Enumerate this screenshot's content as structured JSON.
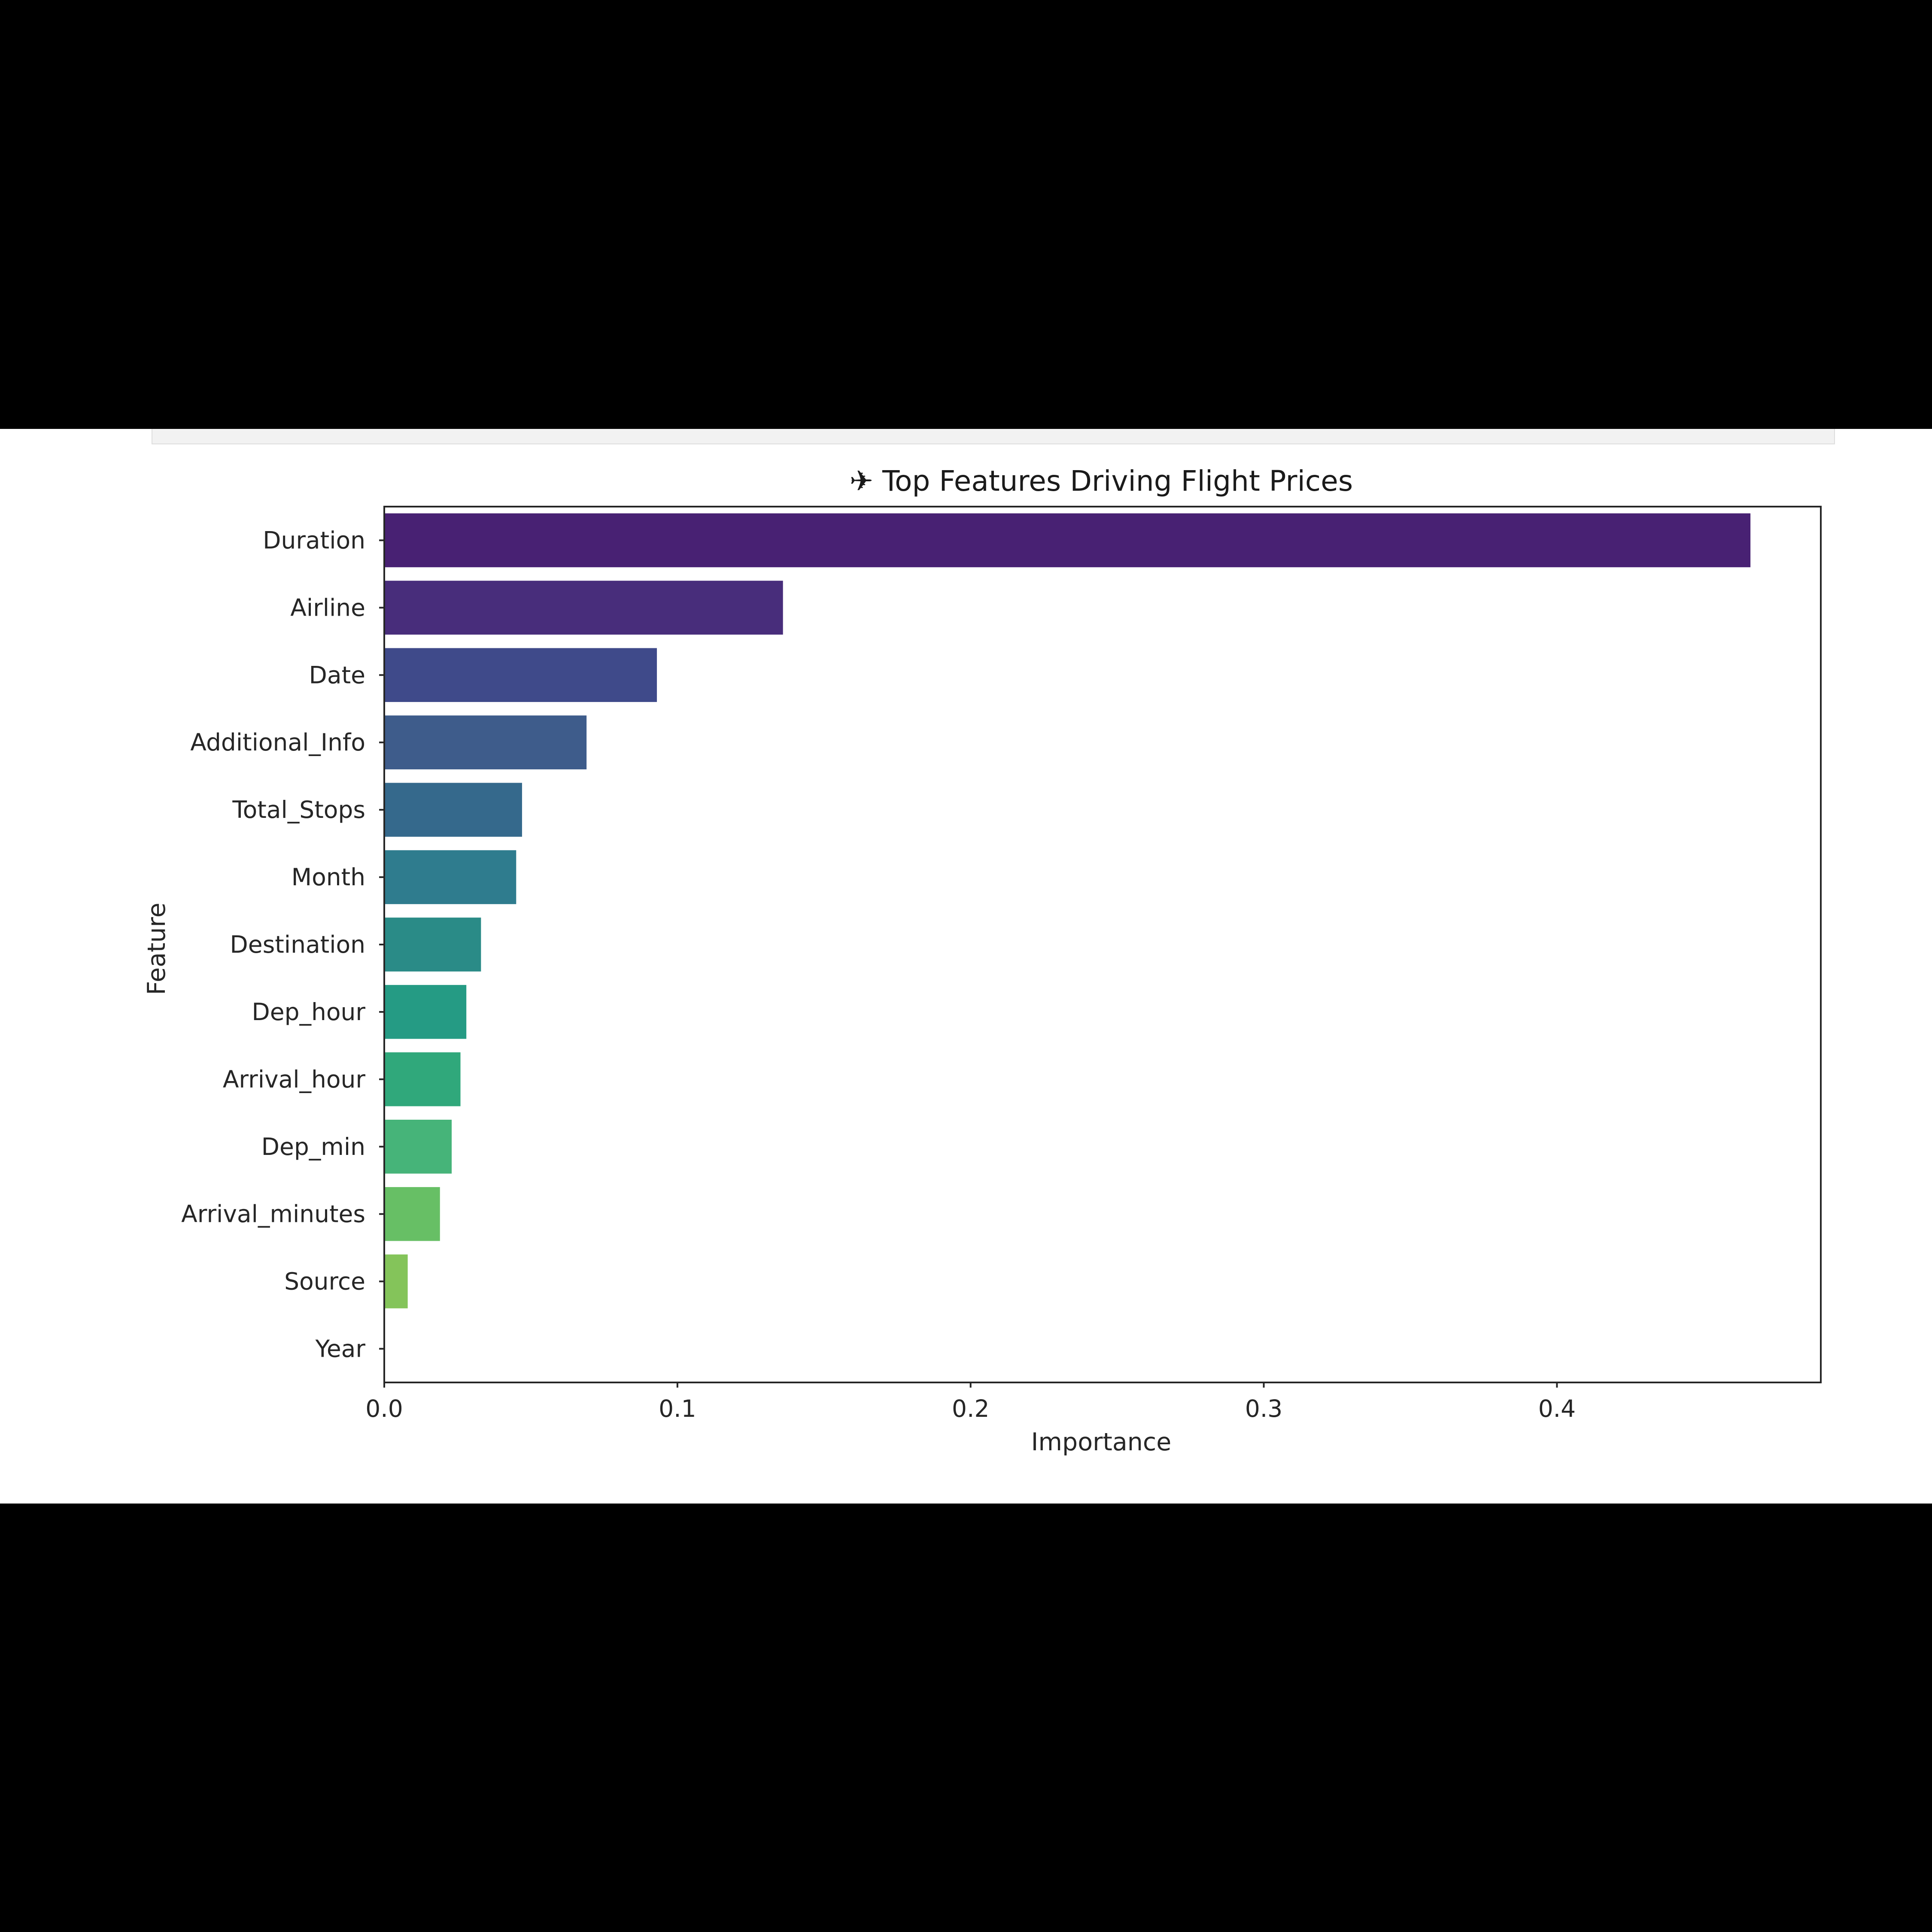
{
  "chart_data": {
    "type": "bar",
    "orientation": "horizontal",
    "title": "✈ Top Features Driving Flight Prices",
    "xlabel": "Importance",
    "ylabel": "Feature",
    "xlim": [
      0,
      0.49
    ],
    "xticks": [
      0.0,
      0.1,
      0.2,
      0.3,
      0.4
    ],
    "xtick_labels": [
      "0.0",
      "0.1",
      "0.2",
      "0.3",
      "0.4"
    ],
    "categories": [
      "Duration",
      "Airline",
      "Date",
      "Additional_Info",
      "Total_Stops",
      "Month",
      "Destination",
      "Dep_hour",
      "Arrival_hour",
      "Dep_min",
      "Arrival_minutes",
      "Source",
      "Year"
    ],
    "values": [
      0.466,
      0.136,
      0.093,
      0.069,
      0.047,
      0.045,
      0.033,
      0.028,
      0.026,
      0.023,
      0.019,
      0.008,
      0.0
    ],
    "colors": [
      "#482173",
      "#482d7b",
      "#3f4a8a",
      "#3e5c8b",
      "#35698c",
      "#2f7c8e",
      "#2a8b87",
      "#259b84",
      "#30a87b",
      "#46b479",
      "#67bf65",
      "#84c45a",
      "#a3cb41"
    ],
    "grid": false,
    "legend": "none"
  }
}
